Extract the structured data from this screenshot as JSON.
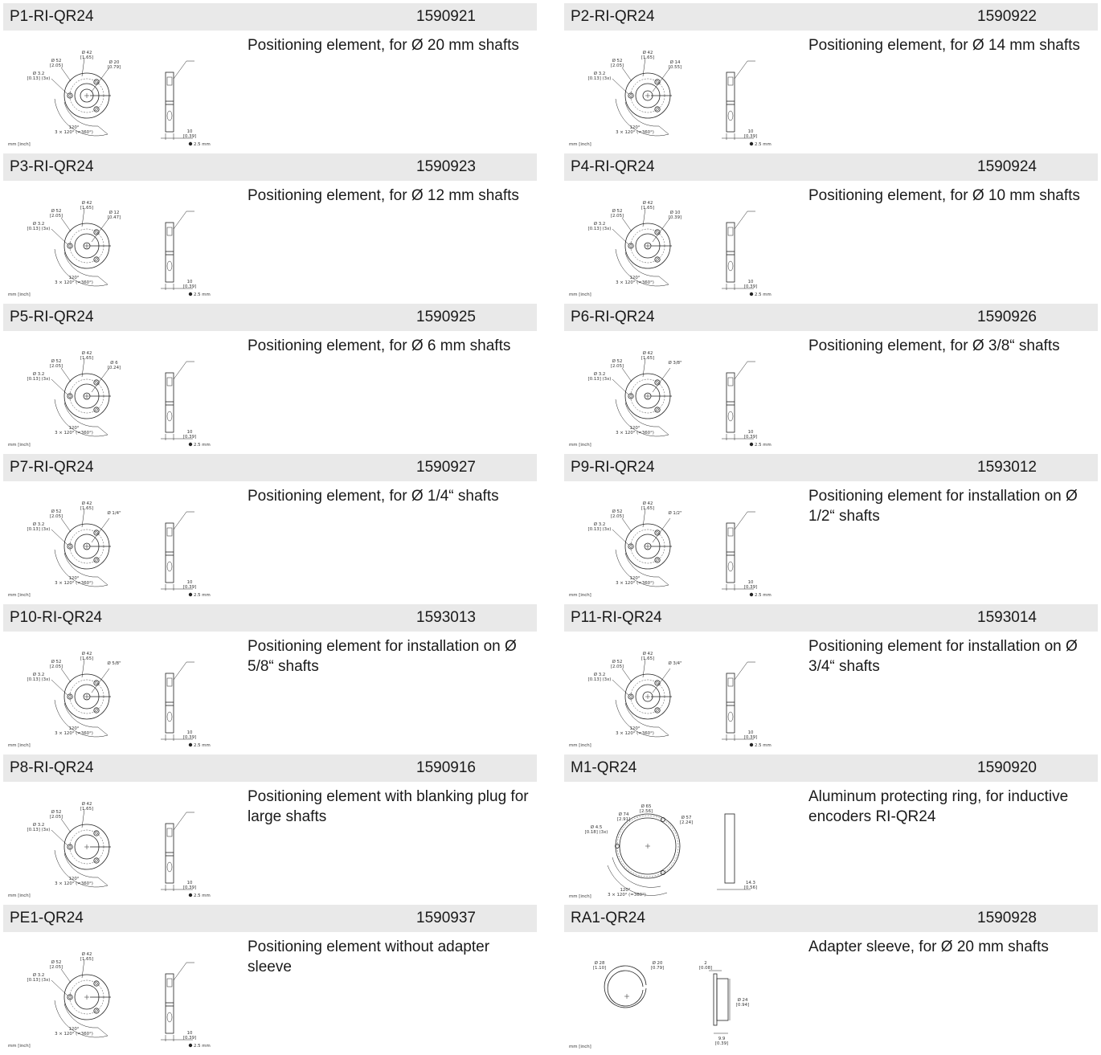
{
  "products": [
    {
      "code": "P1-RI-QR24",
      "number": "1590921",
      "description": "Positioning element, for Ø 20 mm shafts",
      "drawing": "positioner",
      "shaft": {
        "dia": "Ø 20",
        "inch": "[0.79]"
      }
    },
    {
      "code": "P2-RI-QR24",
      "number": "1590922",
      "description": "Positioning element, for Ø 14 mm shafts",
      "drawing": "positioner",
      "shaft": {
        "dia": "Ø 14",
        "inch": "[0.55]"
      }
    },
    {
      "code": "P3-RI-QR24",
      "number": "1590923",
      "description": "Positioning element, for Ø 12 mm shafts",
      "drawing": "positioner",
      "shaft": {
        "dia": "Ø 12",
        "inch": "[0.47]"
      }
    },
    {
      "code": "P4-RI-QR24",
      "number": "1590924",
      "description": "Positioning element, for Ø 10 mm shafts",
      "drawing": "positioner",
      "shaft": {
        "dia": "Ø 10",
        "inch": "[0.39]"
      }
    },
    {
      "code": "P5-RI-QR24",
      "number": "1590925",
      "description": "Positioning element, for Ø 6 mm shafts",
      "drawing": "positioner",
      "shaft": {
        "dia": "Ø 6",
        "inch": "[0.24]"
      }
    },
    {
      "code": "P6-RI-QR24",
      "number": "1590926",
      "description": "Positioning element, for Ø 3/8“ shafts",
      "drawing": "positioner",
      "shaft": {
        "dia": "Ø 3/8\"",
        "inch": ""
      }
    },
    {
      "code": "P7-RI-QR24",
      "number": "1590927",
      "description": "Positioning element, for Ø 1/4“ shafts",
      "drawing": "positioner",
      "shaft": {
        "dia": "Ø 1/4\"",
        "inch": ""
      }
    },
    {
      "code": "P9-RI-QR24",
      "number": "1593012",
      "description": "Positioning element for installation on Ø 1/2“ shafts",
      "drawing": "positioner",
      "shaft": {
        "dia": "Ø 1/2\"",
        "inch": ""
      }
    },
    {
      "code": "P10-RI-QR24",
      "number": "1593013",
      "description": "Positioning element for installation on Ø 5/8“ shafts",
      "drawing": "positioner",
      "shaft": {
        "dia": "Ø 5/8\"",
        "inch": ""
      }
    },
    {
      "code": "P11-RI-QR24",
      "number": "1593014",
      "description": "Positioning element for installation on Ø 3/4“ shafts",
      "drawing": "positioner",
      "shaft": {
        "dia": "Ø 3/4\"",
        "inch": ""
      }
    },
    {
      "code": "P8-RI-QR24",
      "number": "1590916",
      "description": "Positioning element with blanking plug for large shafts",
      "drawing": "positioner",
      "shaft": {
        "dia": "",
        "inch": ""
      }
    },
    {
      "code": "M1-QR24",
      "number": "1590920",
      "description": "Aluminum protecting ring, for inductive encoders RI-QR24",
      "drawing": "ring"
    },
    {
      "code": "PE1-QR24",
      "number": "1590937",
      "description": "Positioning element without adapter sleeve",
      "drawing": "positioner",
      "shaft": {
        "dia": "",
        "inch": ""
      }
    },
    {
      "code": "RA1-QR24",
      "number": "1590928",
      "description": "Adapter sleeve, for Ø 20 mm shafts",
      "drawing": "sleeve"
    }
  ],
  "positioner_labels": {
    "d42": "Ø 42",
    "d42_in": "[1.65]",
    "d52": "Ø 52",
    "d52_in": "[2.05]",
    "d32": "Ø 3.2",
    "d32_in": "[0.13] (3x)",
    "angle": "120°",
    "angle_total": "3 × 120° (=360°)",
    "thick": "10",
    "thick_in": "[0.39]",
    "units": "mm [inch]",
    "hex": "2.5 mm"
  },
  "ring_labels": {
    "d65": "Ø 65",
    "d65_in": "[2.56]",
    "d74": "Ø 74",
    "d74_in": "[2.91]",
    "d57": "Ø 57",
    "d57_in": "[2.24]",
    "d45": "Ø 4.5",
    "d45_in": "[0.18] (3x)",
    "angle": "120°",
    "angle_total": "3 × 120° (=360°)",
    "thick": "14.3",
    "thick_in": "[0.56]",
    "units": "mm [inch]"
  },
  "sleeve_labels": {
    "d28": "Ø 28",
    "d28_in": "[1.10]",
    "d20": "Ø 20",
    "d20_in": "[0.79]",
    "flange": "2",
    "flange_in": "[0.08]",
    "d24": "Ø 24",
    "d24_in": "[0.94]",
    "len": "9.9",
    "len_in": "[0.39]",
    "units": "mm [inch]"
  }
}
